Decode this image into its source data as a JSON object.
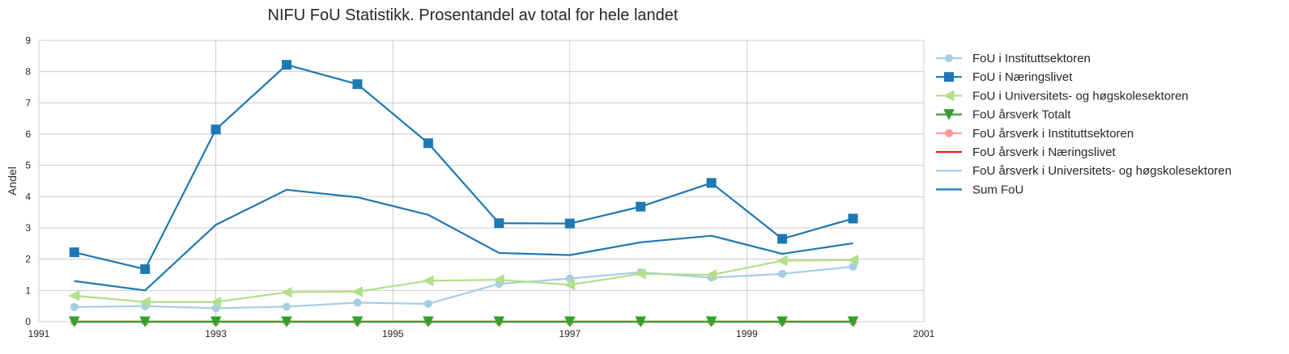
{
  "chart_data": {
    "type": "line",
    "title": "NIFU FoU Statistikk. Prosentandel av total for hele landet",
    "xlabel": "",
    "ylabel": "Andel",
    "xlim": [
      1991,
      2001
    ],
    "ylim": [
      0,
      9
    ],
    "xticks": [
      "1991",
      "1993",
      "1995",
      "1997",
      "1999",
      "2001"
    ],
    "yticks": [
      "0",
      "1",
      "2",
      "3",
      "4",
      "5",
      "6",
      "7",
      "8",
      "9"
    ],
    "grid": true,
    "legend_position": "outside-right",
    "x": [
      1991.4,
      1992.2,
      1993.0,
      1993.8,
      1994.6,
      1995.4,
      1996.2,
      1997.0,
      1997.8,
      1998.6,
      1999.4,
      2000.2
    ],
    "series": [
      {
        "name": "FoU i Instituttsektoren",
        "color": "#a6cee3",
        "marker": "circle",
        "values": [
          0.47,
          0.5,
          0.43,
          0.48,
          0.61,
          0.57,
          1.21,
          1.38,
          1.58,
          1.41,
          1.53,
          1.76
        ]
      },
      {
        "name": "FoU i Næringslivet",
        "color": "#1f78b4",
        "marker": "square",
        "values": [
          2.22,
          1.68,
          6.15,
          8.22,
          7.6,
          5.71,
          3.15,
          3.14,
          3.68,
          4.44,
          2.65,
          3.3
        ]
      },
      {
        "name": "FoU i Universitets- og høgskolesektoren",
        "color": "#b2df8a",
        "marker": "triangle-left",
        "values": [
          0.83,
          0.63,
          0.63,
          0.94,
          0.96,
          1.31,
          1.34,
          1.18,
          1.53,
          1.5,
          1.95,
          1.97
        ]
      },
      {
        "name": "FoU årsverk Totalt",
        "color": "#33a02c",
        "marker": "triangle-down",
        "values": [
          0,
          0,
          0,
          0,
          0,
          0,
          0,
          0,
          0,
          0,
          0,
          0
        ]
      },
      {
        "name": "FoU årsverk i Instituttsektoren",
        "color": "#fb9a99",
        "marker": "circle",
        "values": [
          0,
          0,
          0,
          0,
          0,
          0,
          0,
          0,
          0,
          0,
          0,
          0
        ]
      },
      {
        "name": "FoU årsverk i Næringslivet",
        "color": "#e31a1c",
        "marker": "none",
        "values": [
          0,
          0,
          0,
          0,
          0,
          0,
          0,
          0,
          0,
          0,
          0,
          0
        ]
      },
      {
        "name": "FoU årsverk i Universitets- og høgskolesektoren",
        "color": "#a6cee3",
        "marker": "none",
        "values": [
          0,
          0,
          0,
          0,
          0,
          0,
          0,
          0,
          0,
          0,
          0,
          0
        ]
      },
      {
        "name": "Sum FoU",
        "color": "#1f78b4",
        "marker": "none",
        "values": [
          1.3,
          1.0,
          3.1,
          4.22,
          3.98,
          3.42,
          2.2,
          2.13,
          2.54,
          2.75,
          2.17,
          2.51
        ]
      }
    ]
  }
}
